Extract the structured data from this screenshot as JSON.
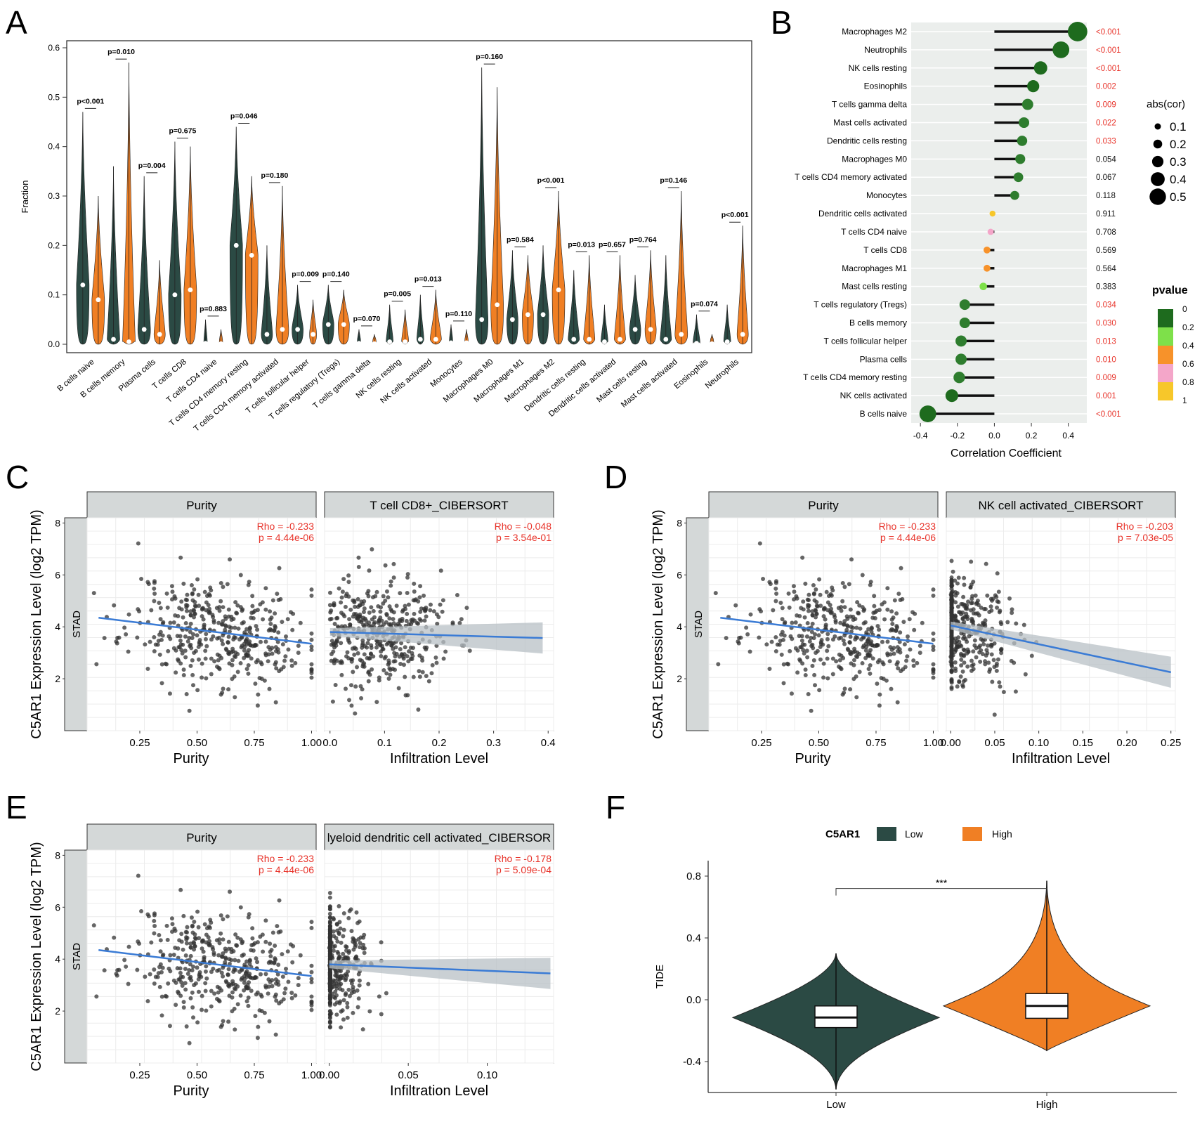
{
  "panel_labels": [
    "A",
    "B",
    "C",
    "D",
    "E",
    "F"
  ],
  "colors": {
    "low": "#2b4a44",
    "high": "#f07f24",
    "trend": "#3a7bd5",
    "band": "#b8c0c6",
    "stat_red": "#e8332a",
    "strip": "#d4d8d8",
    "point": "#333333"
  },
  "chart_data": [
    {
      "panel": "A",
      "type": "violin",
      "ylabel": "Fraction",
      "ylim": [
        0,
        0.6
      ],
      "yticks": [
        "0.0",
        "0.1",
        "0.2",
        "0.3",
        "0.4",
        "0.5",
        "0.6"
      ],
      "categories": [
        "B cells naive",
        "B cells memory",
        "Plasma cells",
        "T cells CD8",
        "T cells CD4 naive",
        "T cells CD4 memory resting",
        "T cells CD4 memory activated",
        "T cells follicular helper",
        "T cells regulatory (Tregs)",
        "T cells gamma delta",
        "NK cells resting",
        "NK cells activated",
        "Monocytes",
        "Macrophages M0",
        "Macrophages M1",
        "Macrophages M2",
        "Dendritic cells resting",
        "Dendritic cells activated",
        "Mast cells resting",
        "Mast cells activated",
        "Eosinophils",
        "Neutrophils"
      ],
      "pvalues": [
        "p<0.001",
        "p=0.010",
        "p=0.004",
        "p=0.675",
        "p=0.883",
        "p=0.046",
        "p=0.180",
        "p=0.009",
        "p=0.140",
        "p=0.070",
        "p=0.005",
        "p=0.013",
        "p=0.110",
        "p=0.160",
        "p=0.584",
        "p<0.001",
        "p=0.013",
        "p=0.657",
        "p=0.764",
        "p=0.146",
        "p=0.074",
        "p<0.001"
      ],
      "series": [
        {
          "name": "Low",
          "max": [
            0.47,
            0.36,
            0.34,
            0.41,
            0.05,
            0.44,
            0.2,
            0.12,
            0.12,
            0.03,
            0.08,
            0.1,
            0.04,
            0.56,
            0.19,
            0.2,
            0.15,
            0.08,
            0.14,
            0.18,
            0.06,
            0.08
          ],
          "median": [
            0.12,
            0.01,
            0.03,
            0.1,
            0.002,
            0.2,
            0.02,
            0.03,
            0.04,
            0.002,
            0.005,
            0.01,
            0.003,
            0.05,
            0.05,
            0.06,
            0.01,
            0.005,
            0.03,
            0.01,
            0.002,
            0.005
          ]
        },
        {
          "name": "High",
          "max": [
            0.3,
            0.57,
            0.17,
            0.4,
            0.03,
            0.34,
            0.32,
            0.09,
            0.11,
            0.02,
            0.07,
            0.11,
            0.03,
            0.52,
            0.18,
            0.31,
            0.18,
            0.18,
            0.19,
            0.31,
            0.02,
            0.24
          ],
          "median": [
            0.09,
            0.005,
            0.02,
            0.11,
            0.001,
            0.18,
            0.03,
            0.02,
            0.04,
            0.001,
            0.005,
            0.01,
            0.003,
            0.08,
            0.06,
            0.11,
            0.01,
            0.01,
            0.03,
            0.02,
            0.001,
            0.02
          ]
        }
      ]
    },
    {
      "panel": "B",
      "type": "lollipop",
      "xlabel": "Correlation Coefficient",
      "xlim": [
        -0.45,
        0.5
      ],
      "xticks": [
        "-0.4",
        "-0.2",
        "0.0",
        "0.2",
        "0.4"
      ],
      "categories": [
        "Macrophages M2",
        "Neutrophils",
        "NK cells resting",
        "Eosinophils",
        "T cells gamma delta",
        "Mast cells activated",
        "Dendritic cells resting",
        "Macrophages M0",
        "T cells CD4 memory activated",
        "Monocytes",
        "Dendritic cells activated",
        "T cells CD4 naive",
        "T cells CD8",
        "Macrophages M1",
        "Mast cells resting",
        "T cells regulatory (Tregs)",
        "B cells memory",
        "T cells follicular helper",
        "Plasma cells",
        "T cells CD4 memory resting",
        "NK cells activated",
        "B cells naive"
      ],
      "values": [
        0.45,
        0.36,
        0.25,
        0.21,
        0.18,
        0.16,
        0.15,
        0.14,
        0.13,
        0.11,
        -0.01,
        -0.02,
        -0.04,
        -0.04,
        -0.06,
        -0.16,
        -0.16,
        -0.18,
        -0.18,
        -0.19,
        -0.23,
        -0.36
      ],
      "pvalues": [
        "<0.001",
        "<0.001",
        "<0.001",
        "0.002",
        "0.009",
        "0.022",
        "0.033",
        "0.054",
        "0.067",
        "0.118",
        "0.911",
        "0.708",
        "0.569",
        "0.564",
        "0.383",
        "0.034",
        "0.030",
        "0.013",
        "0.010",
        "0.009",
        "0.001",
        "<0.001"
      ],
      "legend_size_title": "abs(cor)",
      "legend_size": [
        "0.1",
        "0.2",
        "0.3",
        "0.4",
        "0.5"
      ],
      "legend_color_title": "pvalue",
      "legend_color": [
        "0",
        "0.2",
        "0.4",
        "0.6",
        "0.8",
        "1"
      ]
    },
    {
      "panel": "C",
      "type": "scatter",
      "ylabel": "C5AR1 Expression Level (log2 TPM)",
      "strip": "STAD",
      "yticks": [
        "2",
        "4",
        "6",
        "8"
      ],
      "ylim": [
        0,
        8.2
      ],
      "facets": [
        {
          "title": "Purity",
          "xlabel": "Purity",
          "xlim": [
            0.02,
            1.02
          ],
          "xticks": [
            "0.25",
            "0.50",
            "0.75",
            "1.00"
          ],
          "rho": "Rho = -0.233",
          "p": "p = 4.44e-06",
          "fit": [
            [
              0.07,
              4.35
            ],
            [
              1.0,
              3.35
            ]
          ],
          "seed": 11,
          "dist": "purity"
        },
        {
          "title": "T cell CD8+_CIBERSORT",
          "xlabel": "Infiltration Level",
          "xlim": [
            -0.01,
            0.41
          ],
          "xticks": [
            "0.0",
            "0.1",
            "0.2",
            "0.3",
            "0.4"
          ],
          "rho": "Rho = -0.048",
          "p": "p = 3.54e-01",
          "fit": [
            [
              0.0,
              3.8
            ],
            [
              0.39,
              3.57
            ]
          ],
          "seed": 23,
          "dist": "cd8"
        }
      ]
    },
    {
      "panel": "D",
      "type": "scatter",
      "ylabel": "C5AR1 Expression Level (log2 TPM)",
      "strip": "STAD",
      "yticks": [
        "2",
        "4",
        "6",
        "8"
      ],
      "ylim": [
        0,
        8.2
      ],
      "facets": [
        {
          "title": "Purity",
          "xlabel": "Purity",
          "xlim": [
            0.02,
            1.02
          ],
          "xticks": [
            "0.25",
            "0.50",
            "0.75",
            "1.00"
          ],
          "rho": "Rho = -0.233",
          "p": "p = 4.44e-06",
          "fit": [
            [
              0.07,
              4.35
            ],
            [
              1.0,
              3.35
            ]
          ],
          "seed": 11,
          "dist": "purity"
        },
        {
          "title": "NK cell activated_CIBERSORT",
          "xlabel": "Infiltration Level",
          "xlim": [
            -0.005,
            0.255
          ],
          "xticks": [
            "0.00",
            "0.05",
            "0.10",
            "0.15",
            "0.20",
            "0.25"
          ],
          "rho": "Rho = -0.203",
          "p": "p = 7.03e-05",
          "fit": [
            [
              0.0,
              4.05
            ],
            [
              0.25,
              2.25
            ]
          ],
          "seed": 37,
          "dist": "nk"
        }
      ]
    },
    {
      "panel": "E",
      "type": "scatter",
      "ylabel": "C5AR1 Expression Level (log2 TPM)",
      "strip": "STAD",
      "yticks": [
        "2",
        "4",
        "6",
        "8"
      ],
      "ylim": [
        0,
        8.2
      ],
      "facets": [
        {
          "title": "Purity",
          "xlabel": "Purity",
          "xlim": [
            0.02,
            1.02
          ],
          "xticks": [
            "0.25",
            "0.50",
            "0.75",
            "1.00"
          ],
          "rho": "Rho = -0.233",
          "p": "p = 4.44e-06",
          "fit": [
            [
              0.07,
              4.35
            ],
            [
              1.0,
              3.35
            ]
          ],
          "seed": 11,
          "dist": "purity"
        },
        {
          "title": "lyeloid dendritic cell activated_CIBERSOR",
          "xlabel": "Infiltration Level",
          "xlim": [
            -0.003,
            0.142
          ],
          "xticks": [
            "0.00",
            "0.05",
            "0.10"
          ],
          "rho": "Rho = -0.178",
          "p": "p = 5.09e-04",
          "fit": [
            [
              0.0,
              3.8
            ],
            [
              0.14,
              3.45
            ]
          ],
          "seed": 53,
          "dist": "mdc"
        }
      ]
    },
    {
      "panel": "F",
      "type": "violin",
      "ylabel": "TIDE",
      "ylim": [
        -0.6,
        0.9
      ],
      "yticks": [
        "-0.4",
        "0.0",
        "0.4",
        "0.8"
      ],
      "categories": [
        "Low",
        "High"
      ],
      "legend_title": "C5AR1",
      "series_names": [
        "Low",
        "High"
      ],
      "significance": "***",
      "boxes": [
        {
          "min": -0.58,
          "q1": -0.18,
          "median": -0.115,
          "q3": -0.04,
          "max": 0.3
        },
        {
          "min": -0.33,
          "q1": -0.12,
          "median": -0.04,
          "q3": 0.04,
          "max": 0.77
        }
      ]
    }
  ]
}
